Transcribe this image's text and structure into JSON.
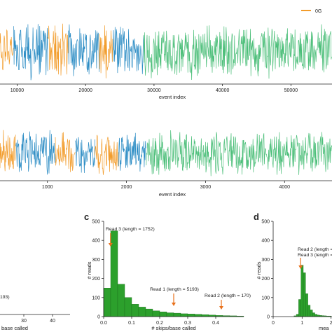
{
  "colors": {
    "orange": "#f29c2b",
    "blue": "#2b8cc4",
    "green": "#4dbf7a",
    "bar": "#2ca02c",
    "arrow": "#e8711c"
  },
  "chart_data": [
    {
      "id": "signal-top",
      "type": "line",
      "xlabel": "event index",
      "xticks": [
        10000,
        20000,
        30000,
        40000,
        50000
      ],
      "xlim": [
        7500,
        56000
      ],
      "legend": {
        "label": "0G",
        "placement": "top-right"
      },
      "segments": [
        {
          "color": "orange",
          "range": [
            7500,
            9500
          ]
        },
        {
          "color": "blue",
          "range": [
            9500,
            14500
          ]
        },
        {
          "color": "orange",
          "range": [
            14500,
            17500
          ]
        },
        {
          "color": "blue",
          "range": [
            17500,
            22000
          ]
        },
        {
          "color": "orange",
          "range": [
            22000,
            24000
          ]
        },
        {
          "color": "blue",
          "range": [
            24000,
            28500
          ]
        },
        {
          "color": "green",
          "range": [
            28500,
            56000
          ]
        }
      ]
    },
    {
      "id": "signal-bottom",
      "type": "line",
      "xlabel": "event index",
      "xticks": [
        1000,
        2000,
        3000,
        4000
      ],
      "xlim": [
        400,
        4600
      ],
      "segments": [
        {
          "color": "orange",
          "range": [
            400,
            600
          ]
        },
        {
          "color": "blue",
          "range": [
            600,
            1100
          ]
        },
        {
          "color": "orange",
          "range": [
            1100,
            1350
          ]
        },
        {
          "color": "blue",
          "range": [
            1350,
            1600
          ]
        },
        {
          "color": "orange",
          "range": [
            1600,
            1900
          ]
        },
        {
          "color": "blue",
          "range": [
            1900,
            2250
          ]
        },
        {
          "color": "green",
          "range": [
            2250,
            4600
          ]
        }
      ]
    },
    {
      "id": "panel-b",
      "type": "bar",
      "xlabel": "base called",
      "xticks": [
        30,
        40
      ],
      "annotation": "193)"
    },
    {
      "id": "panel-c",
      "type": "bar",
      "panel_label": "c",
      "xlabel": "# skips/base called",
      "ylabel": "# reads",
      "xlim": [
        0,
        0.5
      ],
      "ylim": [
        0,
        500
      ],
      "xticks": [
        0.0,
        0.1,
        0.2,
        0.3,
        0.4
      ],
      "yticks": [
        0,
        100,
        200,
        300,
        400,
        500
      ],
      "bin_width": 0.025,
      "values": [
        150,
        450,
        170,
        100,
        65,
        50,
        40,
        30,
        25,
        20,
        18,
        15,
        14,
        12,
        10,
        8,
        6,
        5,
        4,
        3
      ],
      "annotations": [
        {
          "text": "Read 3 (length = 1752)",
          "x": 0.012
        },
        {
          "text": "Read 1 (length = 5193)",
          "x": 0.25
        },
        {
          "text": "Read 2 (length = 170)",
          "x": 0.42
        }
      ]
    },
    {
      "id": "panel-d",
      "type": "bar",
      "panel_label": "d",
      "xlabel": "mea",
      "ylabel": "# reads",
      "xlim": [
        0,
        3
      ],
      "ylim": [
        0,
        500
      ],
      "xticks": [
        0,
        1,
        2
      ],
      "yticks": [
        0,
        100,
        200,
        300,
        400,
        500
      ],
      "annotations": [
        {
          "text": "Read 2 (length =",
          "x": 0.9
        },
        {
          "text": "Read 3 (length =",
          "x": 0.9
        }
      ]
    }
  ]
}
